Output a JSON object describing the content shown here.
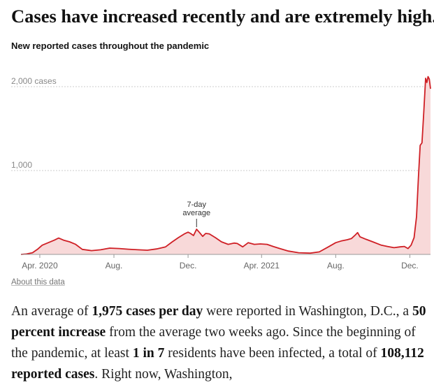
{
  "headline": "Cases have increased recently and are extremely high.",
  "subhead": "New reported cases throughout the pandemic",
  "about_link": "About this data",
  "colors": {
    "line": "#cf1f25",
    "fill": "#f8d9d9",
    "grid": "#cccccc"
  },
  "summary": [
    {
      "text": "An average of "
    },
    {
      "text": "1,975 cases per day",
      "bold": true
    },
    {
      "text": " were reported in Washington, D.C., a "
    },
    {
      "text": "50 percent increase",
      "bold": true
    },
    {
      "text": " from the average two weeks ago. Since the beginning of the pandemic, at least "
    },
    {
      "text": "1 in 7",
      "bold": true
    },
    {
      "text": " residents have been infected, a total of "
    },
    {
      "text": "108,112 reported cases",
      "bold": true
    },
    {
      "text": ". Right now, Washington,"
    }
  ],
  "chart_data": {
    "type": "area",
    "title": "New reported cases throughout the pandemic",
    "xlabel": "",
    "ylabel": "",
    "ylim": [
      0,
      2200
    ],
    "yticks": [
      {
        "value": 1000,
        "label": "1,000"
      },
      {
        "value": 2000,
        "label": "2,000 cases"
      }
    ],
    "xlim": [
      "2020-03-01",
      "2022-01-04"
    ],
    "xticks": [
      {
        "date": "2020-04-01",
        "label": "Apr. 2020"
      },
      {
        "date": "2020-08-01",
        "label": "Aug."
      },
      {
        "date": "2020-12-01",
        "label": "Dec."
      },
      {
        "date": "2021-04-01",
        "label": "Apr. 2021"
      },
      {
        "date": "2021-08-01",
        "label": "Aug."
      },
      {
        "date": "2021-12-01",
        "label": "Dec."
      }
    ],
    "annotation": {
      "text": [
        "7-day",
        "average"
      ],
      "date": "2020-12-15"
    },
    "series": [
      {
        "values": [
          [
            "2020-03-01",
            0
          ],
          [
            "2020-03-10",
            5
          ],
          [
            "2020-03-20",
            20
          ],
          [
            "2020-03-28",
            60
          ],
          [
            "2020-04-05",
            110
          ],
          [
            "2020-04-15",
            140
          ],
          [
            "2020-04-25",
            170
          ],
          [
            "2020-05-02",
            195
          ],
          [
            "2020-05-10",
            170
          ],
          [
            "2020-05-20",
            150
          ],
          [
            "2020-05-30",
            120
          ],
          [
            "2020-06-10",
            60
          ],
          [
            "2020-06-25",
            45
          ],
          [
            "2020-07-10",
            55
          ],
          [
            "2020-07-25",
            75
          ],
          [
            "2020-08-10",
            70
          ],
          [
            "2020-08-25",
            62
          ],
          [
            "2020-09-10",
            55
          ],
          [
            "2020-09-25",
            50
          ],
          [
            "2020-10-10",
            65
          ],
          [
            "2020-10-25",
            90
          ],
          [
            "2020-11-05",
            150
          ],
          [
            "2020-11-15",
            200
          ],
          [
            "2020-11-25",
            245
          ],
          [
            "2020-12-01",
            265
          ],
          [
            "2020-12-05",
            250
          ],
          [
            "2020-12-10",
            225
          ],
          [
            "2020-12-15",
            300
          ],
          [
            "2020-12-20",
            260
          ],
          [
            "2020-12-25",
            215
          ],
          [
            "2020-12-30",
            250
          ],
          [
            "2021-01-05",
            245
          ],
          [
            "2021-01-15",
            200
          ],
          [
            "2021-01-25",
            150
          ],
          [
            "2021-02-05",
            120
          ],
          [
            "2021-02-15",
            135
          ],
          [
            "2021-02-20",
            130
          ],
          [
            "2021-03-01",
            90
          ],
          [
            "2021-03-10",
            140
          ],
          [
            "2021-03-20",
            120
          ],
          [
            "2021-03-30",
            125
          ],
          [
            "2021-04-10",
            120
          ],
          [
            "2021-04-20",
            95
          ],
          [
            "2021-05-01",
            70
          ],
          [
            "2021-05-15",
            40
          ],
          [
            "2021-06-01",
            20
          ],
          [
            "2021-06-20",
            15
          ],
          [
            "2021-07-05",
            30
          ],
          [
            "2021-07-20",
            90
          ],
          [
            "2021-08-01",
            140
          ],
          [
            "2021-08-10",
            160
          ],
          [
            "2021-08-20",
            175
          ],
          [
            "2021-08-27",
            190
          ],
          [
            "2021-09-02",
            230
          ],
          [
            "2021-09-06",
            260
          ],
          [
            "2021-09-10",
            210
          ],
          [
            "2021-09-20",
            180
          ],
          [
            "2021-10-01",
            150
          ],
          [
            "2021-10-15",
            110
          ],
          [
            "2021-10-25",
            95
          ],
          [
            "2021-11-05",
            80
          ],
          [
            "2021-11-15",
            90
          ],
          [
            "2021-11-22",
            95
          ],
          [
            "2021-11-28",
            70
          ],
          [
            "2021-12-03",
            110
          ],
          [
            "2021-12-08",
            200
          ],
          [
            "2021-12-12",
            450
          ],
          [
            "2021-12-15",
            900
          ],
          [
            "2021-12-18",
            1300
          ],
          [
            "2021-12-21",
            1330
          ],
          [
            "2021-12-24",
            1700
          ],
          [
            "2021-12-27",
            2100
          ],
          [
            "2021-12-29",
            2050
          ],
          [
            "2021-12-31",
            2120
          ],
          [
            "2022-01-02",
            2090
          ],
          [
            "2022-01-04",
            1975
          ]
        ]
      }
    ]
  }
}
